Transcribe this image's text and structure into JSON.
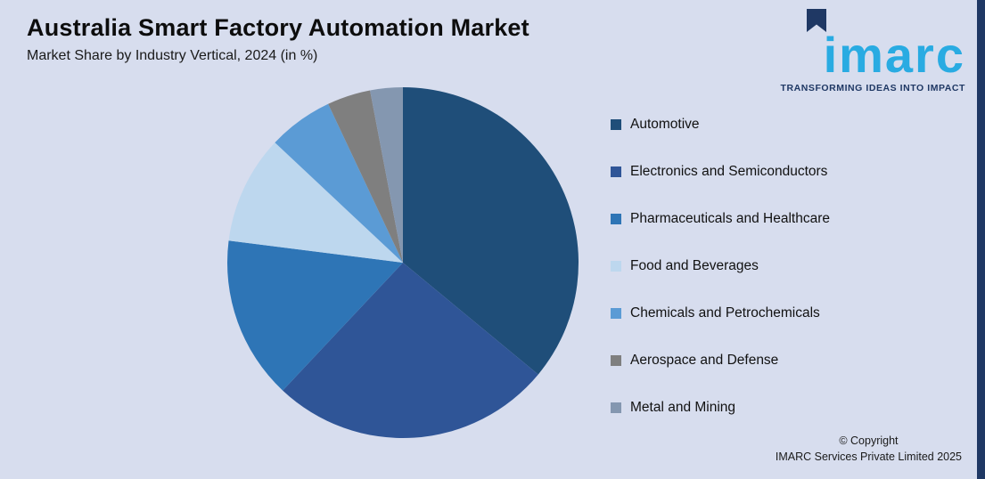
{
  "header": {
    "title": "Australia Smart Factory Automation Market",
    "subtitle": "Market Share by Industry Vertical, 2024 (in %)"
  },
  "logo": {
    "brand": "imarc",
    "tagline": "TRANSFORMING IDEAS INTO IMPACT",
    "brand_color": "#29abe2",
    "flag_color": "#1f3864"
  },
  "footer": {
    "copyright_line1": "© Copyright",
    "copyright_line2": "IMARC Services Private Limited 2025"
  },
  "theme": {
    "background": "#d7ddee",
    "accent_stripe": "#1f3864",
    "text": "#111111"
  },
  "chart_data": {
    "type": "pie",
    "title": "Australia Smart Factory Automation Market",
    "subtitle": "Market Share by Industry Vertical, 2024 (in %)",
    "unit": "%",
    "categories": [
      "Automotive",
      "Electronics and Semiconductors",
      "Pharmaceuticals and Healthcare",
      "Food and Beverages",
      "Chemicals and Petrochemicals",
      "Aerospace and Defense",
      "Metal and Mining"
    ],
    "values": [
      36,
      26,
      15,
      10,
      6,
      4,
      3
    ],
    "colors": [
      "#1f4e79",
      "#2f5597",
      "#2e75b6",
      "#bdd7ee",
      "#5b9bd5",
      "#7f7f7f",
      "#8497b0"
    ],
    "start_angle_deg": -90,
    "direction": "clockwise",
    "legend_position": "right",
    "data_labels": false
  }
}
